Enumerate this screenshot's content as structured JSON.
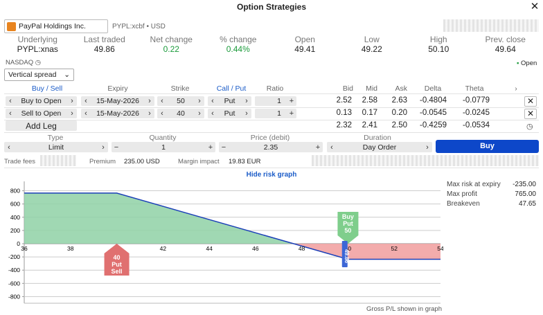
{
  "window": {
    "title": "Option Strategies"
  },
  "symbol": {
    "name": "PayPal Holdings Inc.",
    "exchange_info": "PYPL:xcbf • USD"
  },
  "quote": {
    "headers": [
      "Underlying",
      "Last traded",
      "Net change",
      "% change",
      "Open",
      "Low",
      "High",
      "Prev. close"
    ],
    "values": [
      "PYPL:xnas",
      "49.86",
      "0.22",
      "0.44%",
      "49.41",
      "49.22",
      "50.10",
      "49.64"
    ]
  },
  "market": {
    "exchange": "NASDAQ",
    "status": "Open",
    "status_color": "#1a9a3a"
  },
  "strategy": {
    "selected": "Vertical spread"
  },
  "legs_header": {
    "buy_sell": "Buy / Sell",
    "expiry": "Expiry",
    "strike": "Strike",
    "call_put": "Call / Put",
    "ratio": "Ratio",
    "bid": "Bid",
    "mid": "Mid",
    "ask": "Ask",
    "delta": "Delta",
    "theta": "Theta"
  },
  "legs": [
    {
      "side": "Buy to Open",
      "expiry": "15-May-2026",
      "strike": "50",
      "type": "Put",
      "ratio": "1",
      "bid": "2.52",
      "mid": "2.58",
      "ask": "2.63",
      "delta": "-0.4804",
      "theta": "-0.0779"
    },
    {
      "side": "Sell to Open",
      "expiry": "15-May-2026",
      "strike": "40",
      "type": "Put",
      "ratio": "1",
      "bid": "0.13",
      "mid": "0.17",
      "ask": "0.20",
      "delta": "-0.0545",
      "theta": "-0.0245"
    }
  ],
  "add_leg": {
    "label": "Add Leg"
  },
  "totals": {
    "bid": "2.32",
    "mid": "2.41",
    "ask": "2.50",
    "delta": "-0.4259",
    "theta": "-0.0534"
  },
  "order": {
    "type_label": "Type",
    "type_value": "Limit",
    "quantity_label": "Quantity",
    "quantity_value": "1",
    "price_label": "Price (debit)",
    "price_value": "2.35",
    "duration_label": "Duration",
    "duration_value": "Day Order",
    "buy_label": "Buy"
  },
  "fees": {
    "trade_fees_label": "Trade fees",
    "premium_label": "Premium",
    "premium_value": "235.00 USD",
    "margin_label": "Margin impact",
    "margin_value": "19.83 EUR"
  },
  "risk": {
    "toggle_label": "Hide risk graph",
    "stats": [
      {
        "label": "Max risk at expiry",
        "value": "-235.00"
      },
      {
        "label": "Max profit",
        "value": "765.00"
      },
      {
        "label": "Breakeven",
        "value": "47.65"
      }
    ],
    "footer": "Gross P/L shown in graph"
  },
  "chart_data": {
    "type": "line",
    "x": [
      36,
      40,
      47.65,
      50,
      54
    ],
    "series": [
      {
        "values": [
          765,
          765,
          0,
          -235,
          -235
        ]
      }
    ],
    "xticks": [
      36,
      38,
      40,
      42,
      44,
      46,
      48,
      50,
      52,
      54
    ],
    "yticks": [
      800,
      600,
      400,
      200,
      0,
      -200,
      -400,
      -600,
      -800
    ],
    "xlim": [
      36,
      54
    ],
    "ylim": [
      -900,
      900
    ],
    "grid": true,
    "profit_color": "#8fd1a6",
    "loss_color": "#f2a3a3",
    "line_color": "#1b3fb8",
    "markers": [
      {
        "x": 40,
        "label_top": "40",
        "label_mid": "Put",
        "label_bot": "Sell",
        "color": "#e07070"
      },
      {
        "x": 50,
        "label_top": "Buy",
        "label_mid": "Put",
        "label_bot": "50",
        "color": "#7fce8c"
      },
      {
        "x": 49.86,
        "label": "49.86",
        "color": "#3c66d6"
      }
    ]
  }
}
